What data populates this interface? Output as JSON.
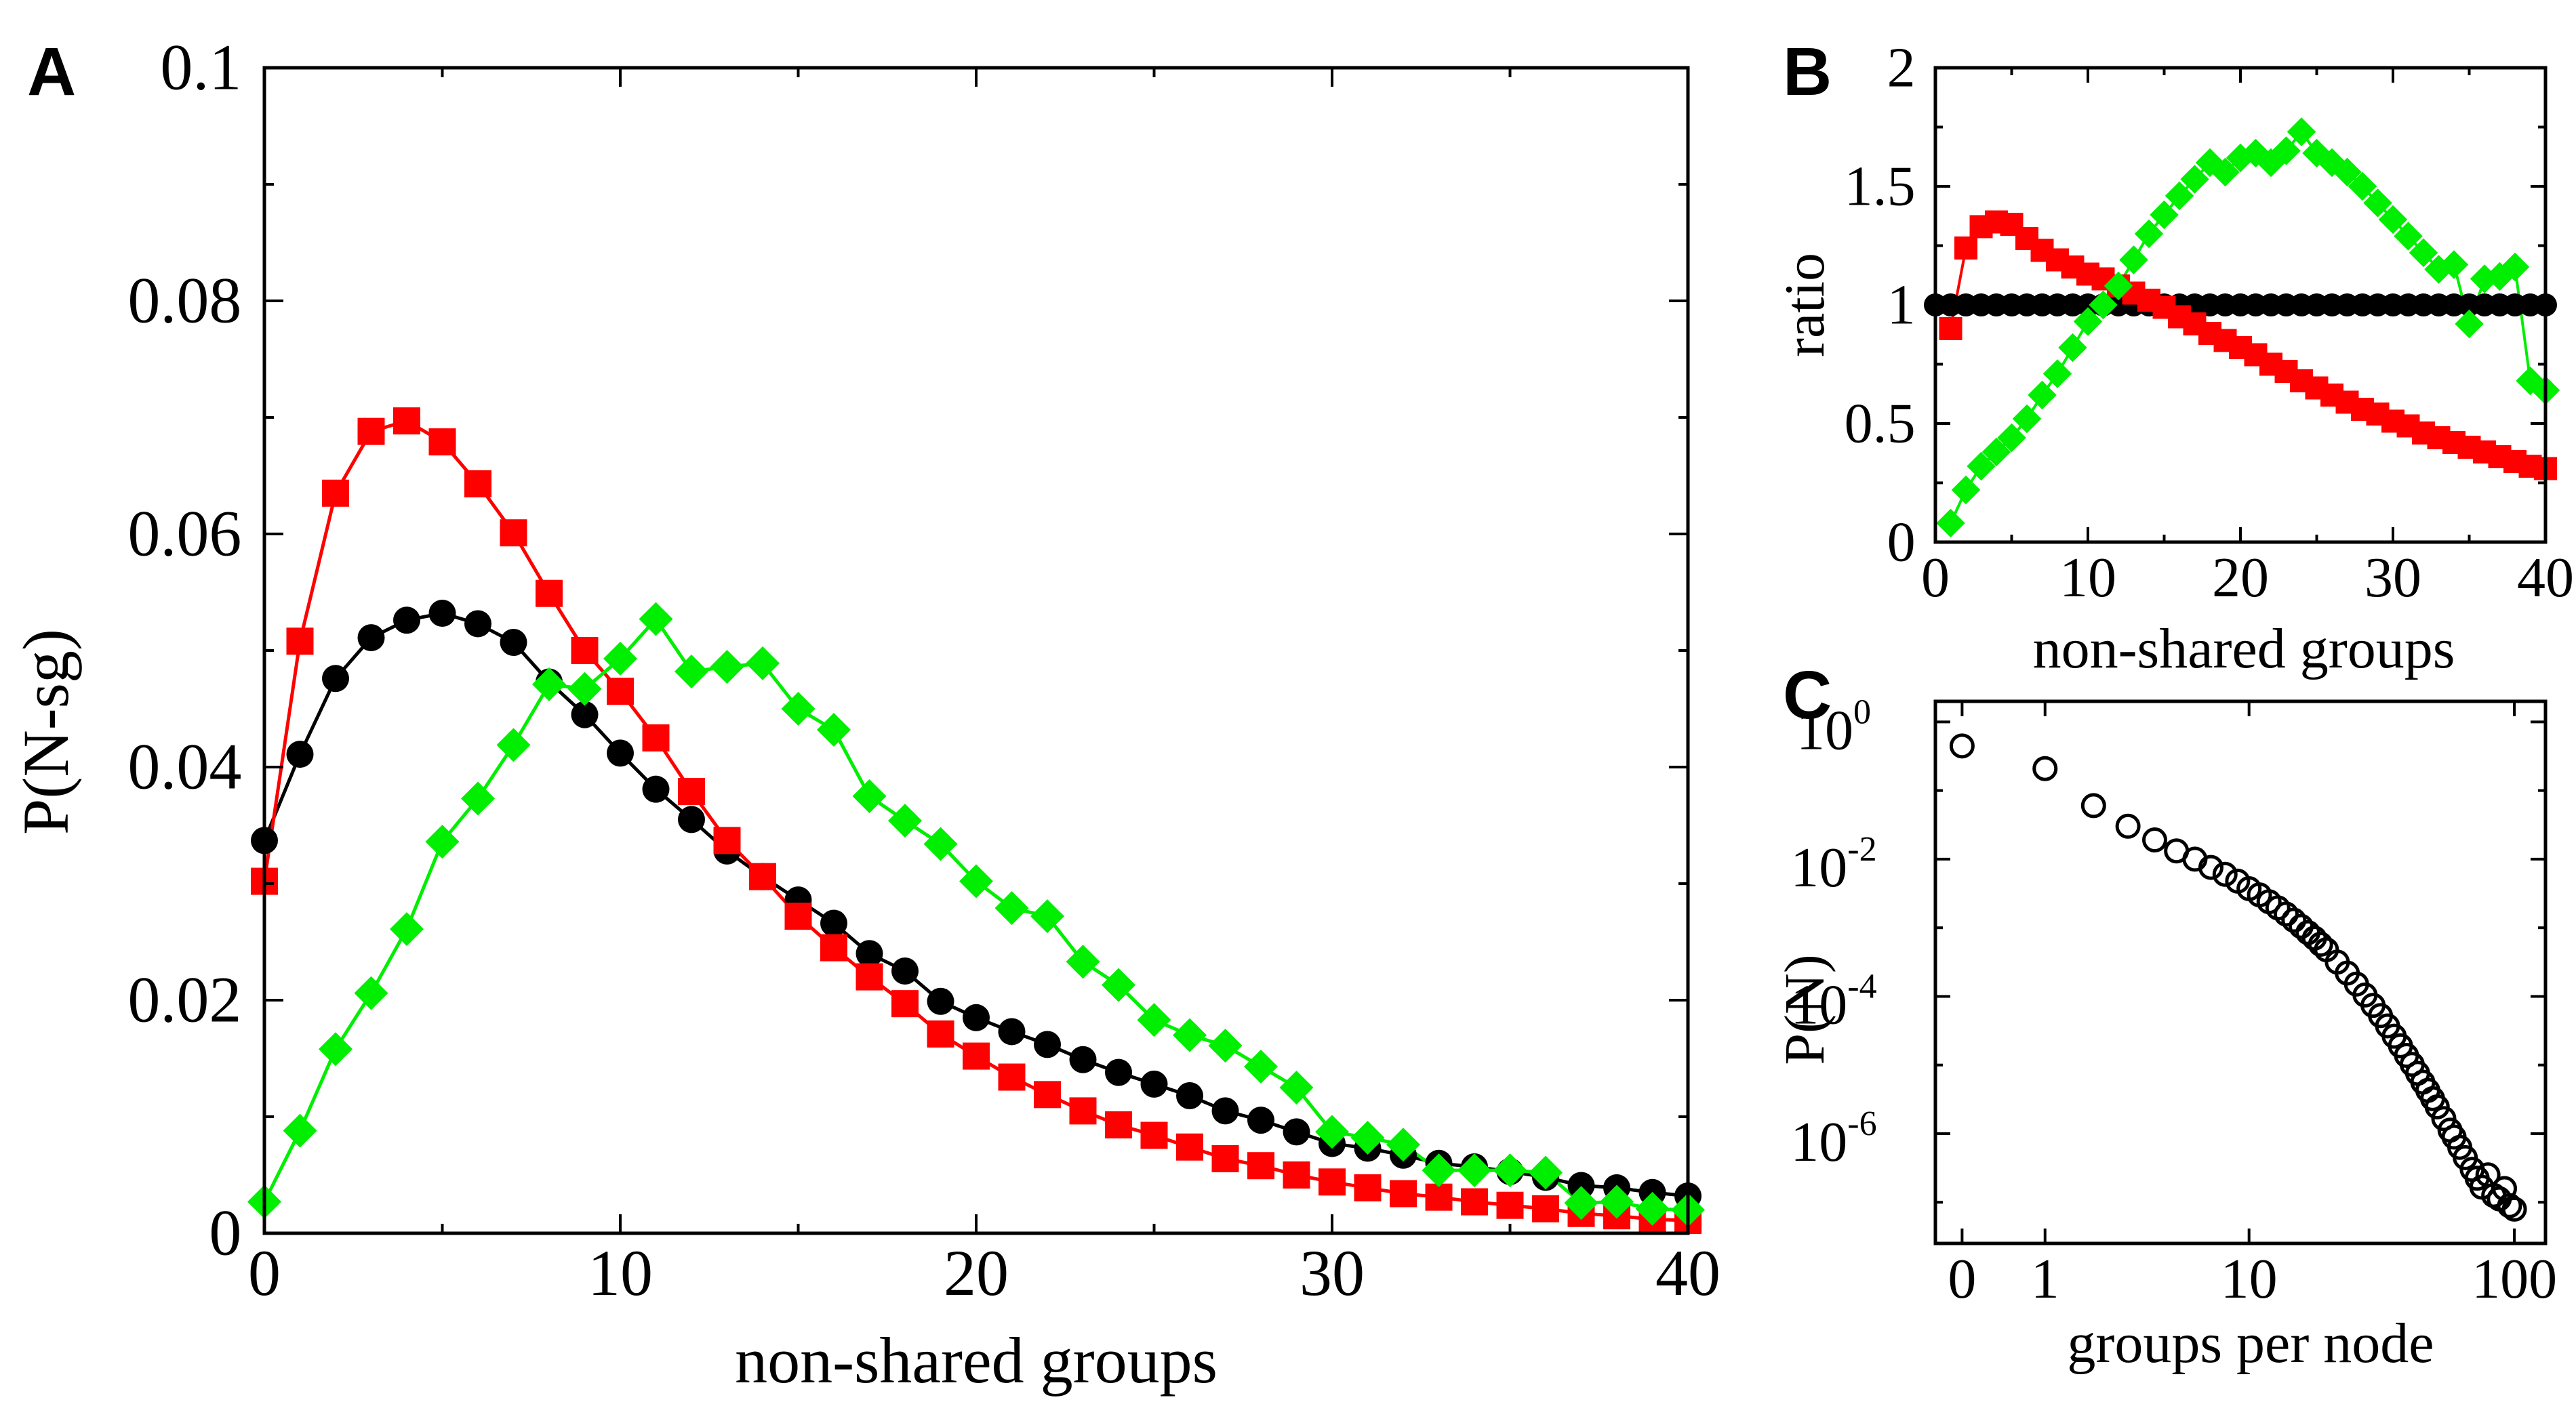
{
  "chart_data": [
    {
      "panel": "A",
      "type": "line",
      "xlabel": "non-shared groups",
      "ylabel": "P(N-sg)",
      "xlim": [
        0,
        40
      ],
      "ylim": [
        0,
        0.1
      ],
      "xticks": [
        0,
        10,
        20,
        30,
        40
      ],
      "xtick_labels": [
        "0",
        "10",
        "20",
        "30",
        "40"
      ],
      "yticks": [
        0,
        0.02,
        0.04,
        0.06,
        0.08,
        0.1
      ],
      "ytick_labels": [
        "0",
        "0.02",
        "0.04",
        "0.06",
        "0.08",
        "0.1"
      ],
      "grid": false,
      "series": [
        {
          "name": "black",
          "color": "#000000",
          "marker": "circle",
          "x": [
            0,
            1,
            2,
            3,
            4,
            5,
            6,
            7,
            8,
            9,
            10,
            11,
            12,
            13,
            14,
            15,
            16,
            17,
            18,
            19,
            20,
            21,
            22,
            23,
            24,
            25,
            26,
            27,
            28,
            29,
            30,
            31,
            32,
            33,
            34,
            35,
            36,
            37,
            38,
            39,
            40
          ],
          "y": [
            0.0337,
            0.0411,
            0.0476,
            0.0511,
            0.0526,
            0.0532,
            0.0523,
            0.0507,
            0.0473,
            0.0445,
            0.0412,
            0.0381,
            0.0355,
            0.0328,
            0.0306,
            0.0286,
            0.0266,
            0.024,
            0.0225,
            0.0199,
            0.0185,
            0.0173,
            0.0162,
            0.0149,
            0.0138,
            0.0128,
            0.0118,
            0.0105,
            0.0097,
            0.0087,
            0.0077,
            0.0073,
            0.0067,
            0.006,
            0.0057,
            0.0053,
            0.0048,
            0.0041,
            0.0039,
            0.0035,
            0.0032
          ]
        },
        {
          "name": "red",
          "color": "#ff0000",
          "marker": "square",
          "x": [
            0,
            1,
            2,
            3,
            4,
            5,
            6,
            7,
            8,
            9,
            10,
            11,
            12,
            13,
            14,
            15,
            16,
            17,
            18,
            19,
            20,
            21,
            22,
            23,
            24,
            25,
            26,
            27,
            28,
            29,
            30,
            31,
            32,
            33,
            34,
            35,
            36,
            37,
            38,
            39,
            40
          ],
          "y": [
            0.0302,
            0.0508,
            0.0635,
            0.0688,
            0.0697,
            0.0679,
            0.0643,
            0.0601,
            0.0549,
            0.05,
            0.0465,
            0.0425,
            0.0379,
            0.0337,
            0.0306,
            0.0272,
            0.0245,
            0.022,
            0.0197,
            0.0171,
            0.0152,
            0.0134,
            0.0119,
            0.0105,
            0.0093,
            0.0084,
            0.0074,
            0.0064,
            0.0058,
            0.005,
            0.0044,
            0.0039,
            0.0034,
            0.0031,
            0.0027,
            0.0024,
            0.0021,
            0.0017,
            0.0015,
            0.0012,
            0.0011
          ]
        },
        {
          "name": "green",
          "color": "#00ee00",
          "marker": "diamond",
          "x": [
            0,
            1,
            2,
            3,
            4,
            5,
            6,
            7,
            8,
            9,
            10,
            11,
            12,
            13,
            14,
            15,
            16,
            17,
            18,
            19,
            20,
            21,
            22,
            23,
            24,
            25,
            26,
            27,
            28,
            29,
            30,
            31,
            32,
            33,
            34,
            35,
            36,
            37,
            38,
            39,
            40
          ],
          "y": [
            0.0027,
            0.0088,
            0.0158,
            0.0206,
            0.0261,
            0.0336,
            0.0373,
            0.0419,
            0.0471,
            0.0467,
            0.0493,
            0.0527,
            0.0482,
            0.0486,
            0.0489,
            0.045,
            0.0432,
            0.0375,
            0.0354,
            0.0334,
            0.0302,
            0.0279,
            0.0272,
            0.0233,
            0.0213,
            0.0183,
            0.017,
            0.0161,
            0.0143,
            0.0125,
            0.0087,
            0.0082,
            0.0076,
            0.0054,
            0.0054,
            0.0054,
            0.0052,
            0.0026,
            0.0027,
            0.0021,
            0.002
          ]
        }
      ]
    },
    {
      "panel": "B",
      "type": "line",
      "xlabel": "non-shared groups",
      "ylabel": "ratio",
      "xlim": [
        0,
        40
      ],
      "ylim": [
        0,
        2
      ],
      "xticks": [
        0,
        10,
        20,
        30,
        40
      ],
      "xtick_labels": [
        "0",
        "10",
        "20",
        "30",
        "40"
      ],
      "yticks": [
        0,
        0.5,
        1,
        1.5,
        2
      ],
      "ytick_labels": [
        "0",
        "0.5",
        "1",
        "1.5",
        "2"
      ],
      "grid": false,
      "series": [
        {
          "name": "black",
          "color": "#000000",
          "marker": "circle",
          "x": [
            0,
            1,
            2,
            3,
            4,
            5,
            6,
            7,
            8,
            9,
            10,
            11,
            12,
            13,
            14,
            15,
            16,
            17,
            18,
            19,
            20,
            21,
            22,
            23,
            24,
            25,
            26,
            27,
            28,
            29,
            30,
            31,
            32,
            33,
            34,
            35,
            36,
            37,
            38,
            39,
            40
          ],
          "y": [
            1,
            1,
            1,
            1,
            1,
            1,
            1,
            1,
            1,
            1,
            1,
            1,
            1,
            1,
            1,
            1,
            1,
            1,
            1,
            1,
            1,
            1,
            1,
            1,
            1,
            1,
            1,
            1,
            1,
            1,
            1,
            1,
            1,
            1,
            1,
            1,
            1,
            1,
            1,
            1,
            1
          ]
        },
        {
          "name": "red",
          "color": "#ff0000",
          "marker": "square",
          "x": [
            1,
            2,
            3,
            4,
            5,
            6,
            7,
            8,
            9,
            10,
            11,
            12,
            13,
            14,
            15,
            16,
            17,
            18,
            19,
            20,
            21,
            22,
            23,
            24,
            25,
            26,
            27,
            28,
            29,
            30,
            31,
            32,
            33,
            34,
            35,
            36,
            37,
            38,
            39,
            40
          ],
          "y": [
            0.9,
            1.24,
            1.33,
            1.35,
            1.34,
            1.28,
            1.23,
            1.19,
            1.16,
            1.13,
            1.11,
            1.08,
            1.05,
            1.02,
            0.99,
            0.95,
            0.92,
            0.88,
            0.85,
            0.82,
            0.79,
            0.75,
            0.72,
            0.68,
            0.65,
            0.62,
            0.59,
            0.56,
            0.54,
            0.51,
            0.49,
            0.46,
            0.44,
            0.42,
            0.4,
            0.38,
            0.36,
            0.34,
            0.32,
            0.31
          ]
        },
        {
          "name": "green",
          "color": "#00ee00",
          "marker": "diamond",
          "x": [
            1,
            2,
            3,
            4,
            5,
            6,
            7,
            8,
            9,
            10,
            11,
            12,
            13,
            14,
            15,
            16,
            17,
            18,
            19,
            20,
            21,
            22,
            23,
            24,
            25,
            26,
            27,
            28,
            29,
            30,
            31,
            32,
            33,
            34,
            35,
            36,
            37,
            38,
            39,
            40
          ],
          "y": [
            0.08,
            0.22,
            0.32,
            0.38,
            0.44,
            0.52,
            0.62,
            0.71,
            0.82,
            0.93,
            1.0,
            1.08,
            1.19,
            1.3,
            1.38,
            1.46,
            1.53,
            1.6,
            1.56,
            1.62,
            1.64,
            1.6,
            1.65,
            1.73,
            1.64,
            1.6,
            1.56,
            1.5,
            1.43,
            1.36,
            1.29,
            1.22,
            1.15,
            1.17,
            0.92,
            1.11,
            1.12,
            1.16,
            0.68,
            0.64
          ]
        }
      ]
    },
    {
      "panel": "C",
      "type": "scatter",
      "xlabel": "groups per node",
      "ylabel": "P(N)",
      "xscale": "log(1+x)",
      "yscale": "log",
      "xlim": [
        -0.2,
        130
      ],
      "ylim_log10": [
        -7.6,
        0.3
      ],
      "xticks": [
        0,
        1,
        10,
        100
      ],
      "xtick_labels": [
        "0",
        "1",
        "10",
        "100"
      ],
      "yticks_log10": [
        0,
        -2,
        -4,
        -6
      ],
      "ytick_labels": [
        {
          "base": "10",
          "exp": "0"
        },
        {
          "base": "10",
          "exp": "-2"
        },
        {
          "base": "10",
          "exp": "-4"
        },
        {
          "base": "10",
          "exp": "-6"
        }
      ],
      "grid": false,
      "series": [
        {
          "name": "P(N)",
          "color": "#000000",
          "marker": "open-circle",
          "x": [
            0,
            1,
            2,
            3,
            4,
            5,
            6,
            7,
            8,
            9,
            10,
            11,
            12,
            13,
            14,
            15,
            16,
            17,
            18,
            19,
            20,
            22,
            24,
            26,
            28,
            30,
            32,
            34,
            36,
            38,
            40,
            42,
            44,
            46,
            48,
            50,
            52,
            55,
            58,
            60,
            63,
            66,
            70,
            73,
            76,
            80,
            84,
            88,
            92,
            96,
            100
          ],
          "y_log10": [
            -0.35,
            -0.68,
            -1.22,
            -1.52,
            -1.72,
            -1.88,
            -2.0,
            -2.12,
            -2.22,
            -2.32,
            -2.43,
            -2.52,
            -2.62,
            -2.71,
            -2.8,
            -2.89,
            -2.98,
            -3.07,
            -3.15,
            -3.24,
            -3.32,
            -3.5,
            -3.66,
            -3.82,
            -3.98,
            -4.13,
            -4.28,
            -4.43,
            -4.58,
            -4.72,
            -4.86,
            -4.99,
            -5.12,
            -5.25,
            -5.37,
            -5.49,
            -5.61,
            -5.78,
            -5.95,
            -6.05,
            -6.2,
            -6.35,
            -6.52,
            -6.65,
            -6.78,
            -6.6,
            -6.9,
            -6.95,
            -6.8,
            -7.05,
            -7.1
          ]
        }
      ]
    }
  ],
  "panels": [
    {
      "letter": "A"
    },
    {
      "letter": "B"
    },
    {
      "letter": "C"
    }
  ]
}
